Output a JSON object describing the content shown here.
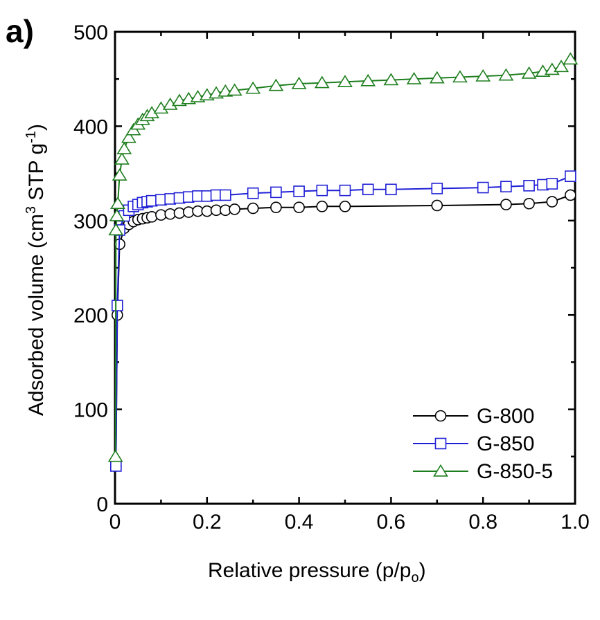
{
  "panel_label": "a)",
  "chart_data": {
    "type": "line",
    "xlabel_main": "Relative pressure (p/p",
    "xlabel_sub": "o",
    "xlabel_end": ")",
    "ylabel_a": "Adsorbed volume (cm",
    "ylabel_sup1": "3",
    "ylabel_b": " STP g",
    "ylabel_sup2": "-1",
    "ylabel_c": ")",
    "xlim": [
      0,
      1.0
    ],
    "ylim": [
      0,
      500
    ],
    "xticks": [
      0,
      0.2,
      0.4,
      0.6,
      0.8,
      1.0
    ],
    "xtick_labels": [
      "0",
      "0.2",
      "0.4",
      "0.6",
      "0.8",
      "1.0"
    ],
    "yticks": [
      0,
      100,
      200,
      300,
      400,
      500
    ],
    "ytick_labels": [
      "0",
      "100",
      "200",
      "300",
      "400",
      "500"
    ],
    "legend_position": "bottom-right",
    "series": [
      {
        "name": "G-800",
        "color": "#000000",
        "marker": "circle",
        "x": [
          0.002,
          0.005,
          0.01,
          0.02,
          0.03,
          0.04,
          0.05,
          0.06,
          0.07,
          0.08,
          0.1,
          0.12,
          0.14,
          0.16,
          0.18,
          0.2,
          0.22,
          0.24,
          0.26,
          0.3,
          0.35,
          0.4,
          0.45,
          0.5,
          0.7,
          0.85,
          0.9,
          0.95,
          0.99
        ],
        "y": [
          40,
          200,
          275,
          292,
          296,
          299,
          301,
          302,
          303,
          304,
          306,
          307,
          308,
          309,
          310,
          310,
          311,
          311,
          312,
          313,
          314,
          314,
          315,
          315,
          316,
          317,
          318,
          320,
          327
        ]
      },
      {
        "name": "G-850",
        "color": "#1f1fd6",
        "marker": "square",
        "x": [
          0.002,
          0.005,
          0.01,
          0.02,
          0.03,
          0.04,
          0.05,
          0.06,
          0.07,
          0.08,
          0.1,
          0.12,
          0.14,
          0.16,
          0.18,
          0.2,
          0.22,
          0.24,
          0.3,
          0.35,
          0.4,
          0.45,
          0.5,
          0.55,
          0.6,
          0.7,
          0.8,
          0.85,
          0.9,
          0.93,
          0.95,
          0.99
        ],
        "y": [
          40,
          210,
          290,
          305,
          311,
          315,
          317,
          319,
          320,
          321,
          322,
          323,
          324,
          325,
          326,
          326,
          327,
          327,
          329,
          330,
          331,
          332,
          332,
          333,
          333,
          334,
          335,
          336,
          337,
          338,
          339,
          347
        ]
      },
      {
        "name": "G-850-5",
        "color": "#1e7e1e",
        "marker": "triangle",
        "x": [
          0.001,
          0.002,
          0.004,
          0.006,
          0.01,
          0.015,
          0.02,
          0.03,
          0.04,
          0.05,
          0.06,
          0.07,
          0.08,
          0.1,
          0.12,
          0.14,
          0.16,
          0.18,
          0.2,
          0.22,
          0.24,
          0.26,
          0.3,
          0.35,
          0.4,
          0.45,
          0.5,
          0.55,
          0.6,
          0.65,
          0.7,
          0.75,
          0.8,
          0.85,
          0.9,
          0.93,
          0.95,
          0.97,
          0.99
        ],
        "y": [
          50,
          290,
          305,
          318,
          348,
          365,
          376,
          388,
          396,
          402,
          407,
          411,
          414,
          419,
          423,
          427,
          429,
          431,
          433,
          435,
          437,
          438,
          440,
          443,
          445,
          446,
          447,
          448,
          449,
          450,
          451,
          452,
          453,
          454,
          456,
          458,
          460,
          463,
          471
        ]
      }
    ]
  }
}
